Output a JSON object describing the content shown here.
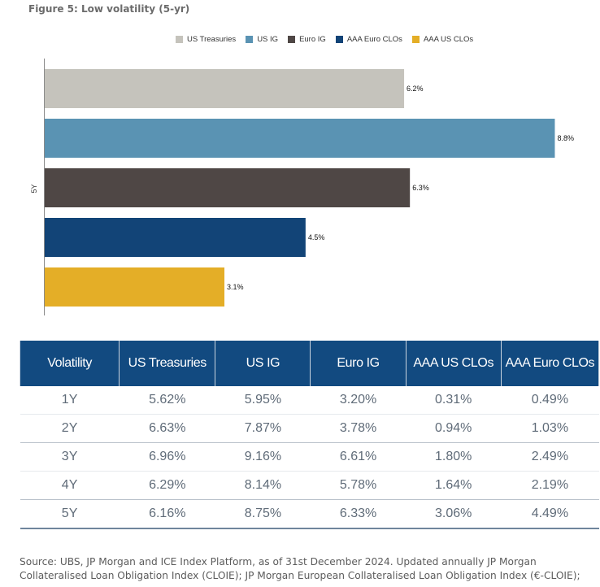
{
  "figure_title": "Figure 5: Low volatility (5-yr)",
  "chart_data": {
    "type": "bar",
    "orientation": "horizontal",
    "title": "Figure 5: Low volatility (5-yr)",
    "categories": [
      "5Y"
    ],
    "xlabel": "",
    "ylabel": "",
    "xlim": [
      0,
      9
    ],
    "grid": false,
    "legend_position": "top-center",
    "series": [
      {
        "name": "US Treasuries",
        "values": [
          6.2
        ],
        "label": "6.2%",
        "color": "#c5c3bc"
      },
      {
        "name": "US IG",
        "values": [
          8.8
        ],
        "label": "8.8%",
        "color": "#5a93b3"
      },
      {
        "name": "Euro IG",
        "values": [
          6.3
        ],
        "label": "6.3%",
        "color": "#4f4745"
      },
      {
        "name": "AAA Euro CLOs",
        "values": [
          4.5
        ],
        "label": "4.5%",
        "color": "#124477"
      },
      {
        "name": "AAA US CLOs",
        "values": [
          3.1
        ],
        "label": "3.1%",
        "color": "#e4ae27"
      }
    ]
  },
  "table": {
    "headers": [
      "Volatility",
      "US Treasuries",
      "US IG",
      "Euro IG",
      "AAA US CLOs",
      "AAA Euro CLOs"
    ],
    "rows": [
      [
        "1Y",
        "5.62%",
        "5.95%",
        "3.20%",
        "0.31%",
        "0.49%"
      ],
      [
        "2Y",
        "6.63%",
        "7.87%",
        "3.78%",
        "0.94%",
        "1.03%"
      ],
      [
        "3Y",
        "6.96%",
        "9.16%",
        "6.61%",
        "1.80%",
        "2.49%"
      ],
      [
        "4Y",
        "6.29%",
        "8.14%",
        "5.78%",
        "1.64%",
        "2.19%"
      ],
      [
        "5Y",
        "6.16%",
        "8.75%",
        "6.33%",
        "3.06%",
        "4.49%"
      ]
    ]
  },
  "source": {
    "line1": "Source: UBS, JP Morgan and ICE Index Platform, as of 31st December 2024. Updated annually JP Morgan",
    "line2": "Collateralised Loan Obligation Index (CLOIE); JP Morgan European Collateralised Loan Obligation Index (€-CLOIE);"
  }
}
